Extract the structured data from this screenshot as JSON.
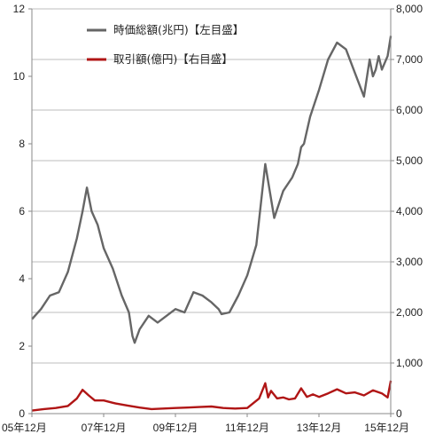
{
  "chart_data": {
    "type": "line",
    "title": "",
    "x_tick_labels": [
      "05年12月",
      "07年12月",
      "09年12月",
      "11年12月",
      "13年12月",
      "15年12月"
    ],
    "y_left": {
      "ticks": [
        "0",
        "2",
        "4",
        "6",
        "8",
        "10",
        "12"
      ],
      "range": [
        0,
        12
      ],
      "label": ""
    },
    "y_right": {
      "ticks": [
        "0",
        "1,000",
        "2,000",
        "3,000",
        "4,000",
        "5,000",
        "6,000",
        "7,000",
        "8,000"
      ],
      "range": [
        0,
        8000
      ],
      "label": ""
    },
    "grid": "horizontal",
    "legend_position": "top",
    "x_range": [
      2005.9167,
      2015.9167
    ],
    "series": [
      {
        "name": "時価総額(兆円)【左目盛】",
        "axis": "left",
        "color": "#666666",
        "x": [
          2005.92,
          2006.17,
          2006.42,
          2006.67,
          2006.92,
          2007.17,
          2007.33,
          2007.45,
          2007.58,
          2007.75,
          2007.92,
          2008.17,
          2008.42,
          2008.62,
          2008.72,
          2008.78,
          2008.92,
          2009.17,
          2009.42,
          2009.67,
          2009.92,
          2010.17,
          2010.42,
          2010.67,
          2010.92,
          2011.12,
          2011.2,
          2011.42,
          2011.67,
          2011.92,
          2012.17,
          2012.42,
          2012.67,
          2012.92,
          2013.17,
          2013.33,
          2013.42,
          2013.5,
          2013.67,
          2013.92,
          2014.17,
          2014.42,
          2014.67,
          2014.92,
          2015.17,
          2015.33,
          2015.42,
          2015.5,
          2015.58,
          2015.67,
          2015.83,
          2015.92
        ],
        "y": [
          2.8,
          3.1,
          3.5,
          3.6,
          4.2,
          5.2,
          6.0,
          6.7,
          6.0,
          5.6,
          4.9,
          4.3,
          3.5,
          3.0,
          2.3,
          2.1,
          2.5,
          2.9,
          2.7,
          2.9,
          3.1,
          3.0,
          3.6,
          3.5,
          3.3,
          3.1,
          2.95,
          3.0,
          3.5,
          4.1,
          5.0,
          7.4,
          5.8,
          6.6,
          7.0,
          7.4,
          7.9,
          8.0,
          8.8,
          9.6,
          10.5,
          11.0,
          10.8,
          10.1,
          9.4,
          10.5,
          10.0,
          10.2,
          10.6,
          10.2,
          10.6,
          11.2
        ]
      },
      {
        "name": "取引額(億円)【右目盛】",
        "axis": "right",
        "color": "#b01515",
        "x": [
          2005.92,
          2006.25,
          2006.58,
          2006.92,
          2007.17,
          2007.33,
          2007.5,
          2007.67,
          2007.92,
          2008.25,
          2008.58,
          2008.92,
          2009.25,
          2009.58,
          2009.92,
          2010.25,
          2010.58,
          2010.92,
          2011.25,
          2011.58,
          2011.92,
          2012.25,
          2012.42,
          2012.5,
          2012.58,
          2012.75,
          2012.92,
          2013.08,
          2013.25,
          2013.42,
          2013.58,
          2013.75,
          2013.92,
          2014.17,
          2014.42,
          2014.67,
          2014.92,
          2015.17,
          2015.42,
          2015.67,
          2015.83,
          2015.92
        ],
        "y": [
          60,
          90,
          110,
          150,
          300,
          470,
          360,
          260,
          260,
          200,
          160,
          120,
          90,
          100,
          110,
          120,
          130,
          140,
          110,
          100,
          110,
          300,
          600,
          320,
          450,
          300,
          320,
          280,
          300,
          500,
          330,
          380,
          330,
          400,
          480,
          400,
          420,
          360,
          460,
          400,
          320,
          650
        ]
      }
    ]
  }
}
